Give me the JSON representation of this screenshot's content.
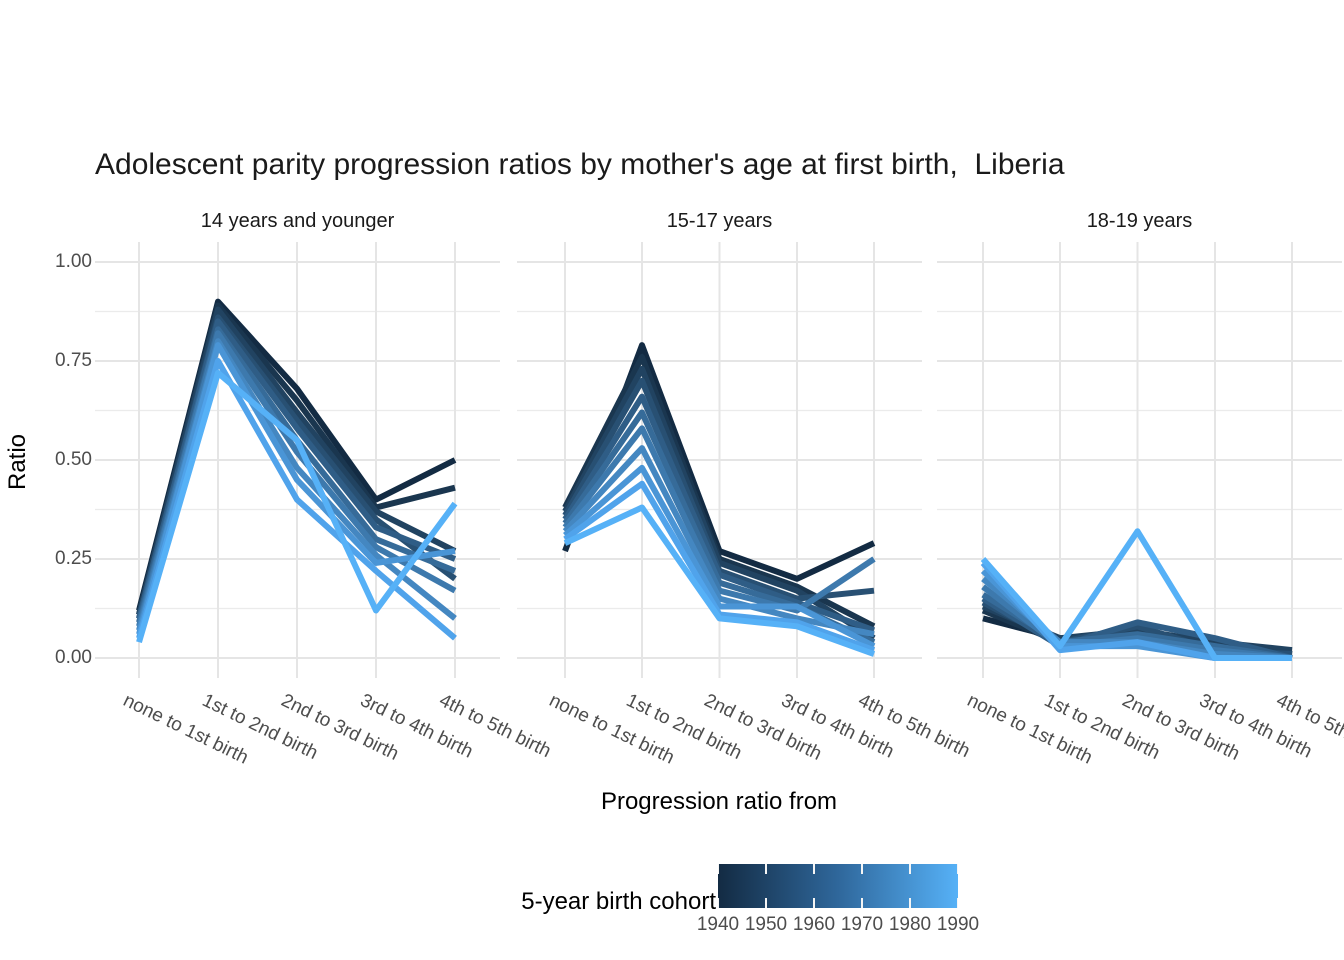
{
  "title": "Adolescent parity progression ratios by mother's age at first birth,  Liberia",
  "chart_data": {
    "type": "line",
    "title": "Adolescent parity progression ratios by mother's age at first birth,  Liberia",
    "xlabel": "Progression ratio from",
    "ylabel": "Ratio",
    "ylim": [
      0.0,
      1.0
    ],
    "ytick_labels": [
      "0.00",
      "0.25",
      "0.50",
      "0.75",
      "1.00"
    ],
    "ytick_values": [
      0.0,
      0.25,
      0.5,
      0.75,
      1.0
    ],
    "grid": "on",
    "legend_position": "bottom",
    "categories": [
      "none to 1st birth",
      "1st to 2nd birth",
      "2nd to 3rd birth",
      "3rd to 4th birth",
      "4th to 5th birth"
    ],
    "cohorts": [
      {
        "year": 1940,
        "color": "#132B43"
      },
      {
        "year": 1945,
        "color": "#1A364F"
      },
      {
        "year": 1950,
        "color": "#214361"
      },
      {
        "year": 1955,
        "color": "#285073"
      },
      {
        "year": 1960,
        "color": "#2F5D86"
      },
      {
        "year": 1965,
        "color": "#366B99"
      },
      {
        "year": 1970,
        "color": "#3D79AD"
      },
      {
        "year": 1975,
        "color": "#4487C1"
      },
      {
        "year": 1980,
        "color": "#4A95D6"
      },
      {
        "year": 1985,
        "color": "#50A3EB"
      },
      {
        "year": 1990,
        "color": "#56B1F7"
      }
    ],
    "facets": [
      {
        "label": "14 years and younger",
        "series": [
          {
            "cohort": 1940,
            "values": [
              0.12,
              0.9,
              0.68,
              0.4,
              0.5
            ]
          },
          {
            "cohort": 1945,
            "values": [
              0.11,
              0.89,
              0.65,
              0.38,
              0.43
            ]
          },
          {
            "cohort": 1950,
            "values": [
              0.11,
              0.88,
              0.62,
              0.37,
              0.27
            ]
          },
          {
            "cohort": 1955,
            "values": [
              0.1,
              0.86,
              0.6,
              0.35,
              0.2
            ]
          },
          {
            "cohort": 1960,
            "values": [
              0.1,
              0.85,
              0.58,
              0.33,
              0.25
            ]
          },
          {
            "cohort": 1965,
            "values": [
              0.09,
              0.83,
              0.55,
              0.3,
              0.22
            ]
          },
          {
            "cohort": 1970,
            "values": [
              0.08,
              0.82,
              0.52,
              0.28,
              0.17
            ]
          },
          {
            "cohort": 1975,
            "values": [
              0.07,
              0.8,
              0.48,
              0.26,
              0.1
            ]
          },
          {
            "cohort": 1980,
            "values": [
              0.06,
              0.79,
              0.45,
              0.24,
              0.27
            ]
          },
          {
            "cohort": 1985,
            "values": [
              0.05,
              0.75,
              0.4,
              0.22,
              0.05
            ]
          },
          {
            "cohort": 1990,
            "values": [
              0.04,
              0.72,
              0.55,
              0.12,
              0.39
            ]
          }
        ]
      },
      {
        "label": "15-17 years",
        "series": [
          {
            "cohort": 1940,
            "values": [
              0.27,
              0.79,
              0.27,
              0.2,
              0.29
            ]
          },
          {
            "cohort": 1945,
            "values": [
              0.38,
              0.76,
              0.25,
              0.18,
              0.08
            ]
          },
          {
            "cohort": 1950,
            "values": [
              0.37,
              0.73,
              0.24,
              0.17,
              0.05
            ]
          },
          {
            "cohort": 1955,
            "values": [
              0.36,
              0.7,
              0.22,
              0.15,
              0.17
            ]
          },
          {
            "cohort": 1960,
            "values": [
              0.35,
              0.66,
              0.21,
              0.14,
              0.07
            ]
          },
          {
            "cohort": 1965,
            "values": [
              0.34,
              0.62,
              0.19,
              0.13,
              0.04
            ]
          },
          {
            "cohort": 1970,
            "values": [
              0.33,
              0.58,
              0.17,
              0.12,
              0.25
            ]
          },
          {
            "cohort": 1975,
            "values": [
              0.32,
              0.53,
              0.15,
              0.1,
              0.06
            ]
          },
          {
            "cohort": 1980,
            "values": [
              0.31,
              0.48,
              0.13,
              0.13,
              0.03
            ]
          },
          {
            "cohort": 1985,
            "values": [
              0.3,
              0.44,
              0.11,
              0.09,
              0.02
            ]
          },
          {
            "cohort": 1990,
            "values": [
              0.29,
              0.38,
              0.1,
              0.08,
              0.01
            ]
          }
        ]
      },
      {
        "label": "18-19 years",
        "series": [
          {
            "cohort": 1940,
            "values": [
              0.1,
              0.05,
              0.05,
              0.02,
              0.02
            ]
          },
          {
            "cohort": 1945,
            "values": [
              0.12,
              0.04,
              0.06,
              0.03,
              0.01
            ]
          },
          {
            "cohort": 1950,
            "values": [
              0.13,
              0.05,
              0.07,
              0.04,
              0.02
            ]
          },
          {
            "cohort": 1955,
            "values": [
              0.14,
              0.04,
              0.08,
              0.02,
              0.01
            ]
          },
          {
            "cohort": 1960,
            "values": [
              0.15,
              0.03,
              0.09,
              0.05,
              0.0
            ]
          },
          {
            "cohort": 1965,
            "values": [
              0.16,
              0.04,
              0.06,
              0.03,
              0.0
            ]
          },
          {
            "cohort": 1970,
            "values": [
              0.18,
              0.03,
              0.05,
              0.02,
              0.0
            ]
          },
          {
            "cohort": 1975,
            "values": [
              0.2,
              0.04,
              0.04,
              0.01,
              0.0
            ]
          },
          {
            "cohort": 1980,
            "values": [
              0.22,
              0.03,
              0.03,
              0.0,
              0.0
            ]
          },
          {
            "cohort": 1985,
            "values": [
              0.24,
              0.02,
              0.04,
              0.0,
              0.0
            ]
          },
          {
            "cohort": 1990,
            "values": [
              0.25,
              0.03,
              0.32,
              0.0,
              0.0
            ]
          }
        ]
      }
    ],
    "legend": {
      "title": "5-year birth cohort",
      "tick_labels": [
        "1940",
        "1950",
        "1960",
        "1970",
        "1980",
        "1990"
      ],
      "gradient_low": "#132B43",
      "gradient_mid": "#2F679B",
      "gradient_high": "#56B1F7"
    },
    "colors": {
      "background": "#FFFFFF",
      "gridline_major": "#E5E5E5",
      "gridline_minor": "#EBEBEB",
      "axis_text": "#4D4D4D"
    }
  }
}
